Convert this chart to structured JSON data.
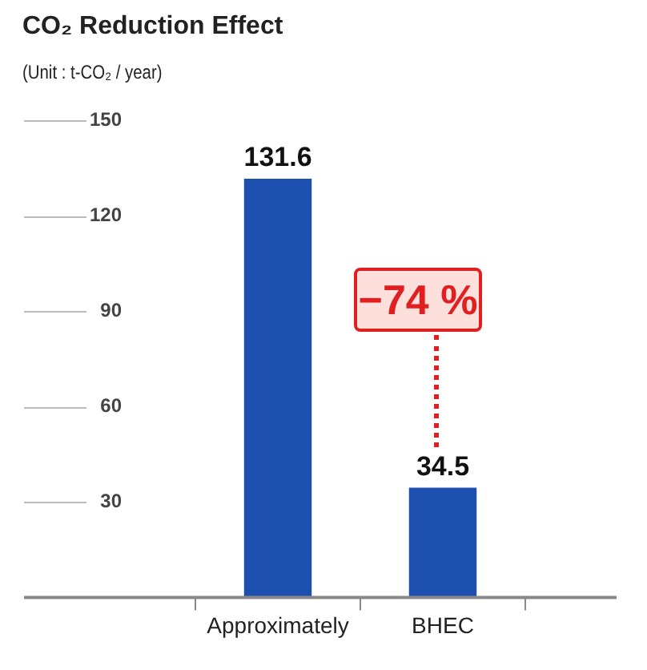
{
  "chart_data": {
    "type": "bar",
    "title": "CO₂ Reduction Effect",
    "subtitle": "(Unit : t-CO₂ / year)",
    "categories": [
      "Approximately",
      "BHEC"
    ],
    "values": [
      131.6,
      34.5
    ],
    "color": "#1c4fae",
    "ylim": [
      0,
      150
    ],
    "yticks": [
      30,
      60,
      90,
      120,
      150
    ],
    "data_labels": true,
    "annotations": [
      "−74 %"
    ]
  }
}
